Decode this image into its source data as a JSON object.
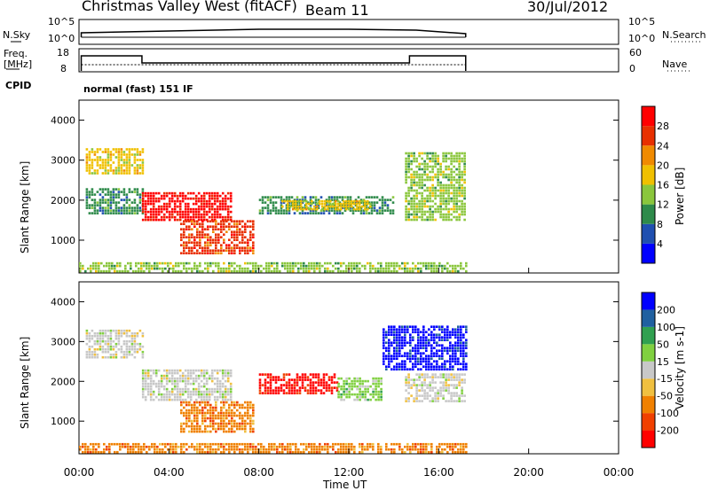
{
  "header": {
    "station": "Christmas Valley West (fitACF)",
    "beam": "Beam 11",
    "date": "30/Jul/2012"
  },
  "status_panels": {
    "nsky_label": "N.Sky",
    "nsearch_label": "N.Search",
    "noise_ticks": [
      "10^5",
      "10^0"
    ],
    "freq_label_line1": "Freq.",
    "freq_label_line2": "[MHz]",
    "freq_ticks": [
      "18",
      "8"
    ],
    "nave_label": "Nave",
    "nave_ticks": [
      "60",
      "0"
    ],
    "cpid_label": "CPID",
    "cpid_value": "normal (fast) 151 IF"
  },
  "chart_data": [
    {
      "type": "heatmap",
      "name": "power",
      "ylabel": "Slant Range [km]",
      "xlabel": "",
      "yticks": [
        "4000",
        "3000",
        "2000",
        "1000"
      ],
      "ylim": [
        180,
        4500
      ],
      "xlim": [
        0,
        24
      ],
      "colorbar_label": "Power [dB]",
      "colorbar_ticks": [
        "28",
        "24",
        "20",
        "16",
        "12",
        "8",
        "4"
      ],
      "colors": [
        "#0000ff",
        "#1f4fb0",
        "#2e8a4a",
        "#8ac63c",
        "#f0c000",
        "#f08a00",
        "#e83000",
        "#ff0000"
      ],
      "regions": [
        {
          "t0": 0.3,
          "t1": 2.8,
          "r0": 2700,
          "r1": 3300,
          "level": 4
        },
        {
          "t0": 0.3,
          "t1": 2.8,
          "r0": 1700,
          "r1": 2300,
          "level": 2
        },
        {
          "t0": 2.8,
          "t1": 6.8,
          "r0": 1500,
          "r1": 2200,
          "level": 7
        },
        {
          "t0": 4.5,
          "t1": 7.8,
          "r0": 700,
          "r1": 1500,
          "level": 6
        },
        {
          "t0": 8.0,
          "t1": 14.0,
          "r0": 1700,
          "r1": 2100,
          "level": 2
        },
        {
          "t0": 9.0,
          "t1": 13.0,
          "r0": 1800,
          "r1": 2000,
          "level": 4
        },
        {
          "t0": 14.5,
          "t1": 17.2,
          "r0": 1500,
          "r1": 3200,
          "level": 3
        },
        {
          "t0": 0.0,
          "t1": 17.2,
          "r0": 200,
          "r1": 450,
          "level": 3
        }
      ]
    },
    {
      "type": "heatmap",
      "name": "velocity",
      "ylabel": "Slant Range [km]",
      "xlabel": "Time UT",
      "yticks": [
        "4000",
        "3000",
        "2000",
        "1000"
      ],
      "ylim": [
        180,
        4500
      ],
      "xlim": [
        0,
        24
      ],
      "xticks": [
        "00:00",
        "04:00",
        "08:00",
        "12:00",
        "16:00",
        "20:00",
        "00:00"
      ],
      "colorbar_label": "Velocity [m s-1]",
      "colorbar_ticks": [
        "200",
        "100",
        "50",
        "15",
        "-15",
        "-50",
        "-100",
        "-200"
      ],
      "colors": [
        "#ff0000",
        "#f04000",
        "#f08000",
        "#f0c040",
        "#c8c8c8",
        "#80d040",
        "#30a050",
        "#2060a0",
        "#0000ff"
      ],
      "regions": [
        {
          "t0": 0.3,
          "t1": 2.8,
          "r0": 2600,
          "r1": 3300,
          "level": 4
        },
        {
          "t0": 2.8,
          "t1": 6.8,
          "r0": 1500,
          "r1": 2300,
          "level": 4
        },
        {
          "t0": 4.5,
          "t1": 7.8,
          "r0": 700,
          "r1": 1500,
          "level": 2
        },
        {
          "t0": 8.0,
          "t1": 11.5,
          "r0": 1700,
          "r1": 2200,
          "level": 0
        },
        {
          "t0": 11.5,
          "t1": 13.5,
          "r0": 1500,
          "r1": 2100,
          "level": 5
        },
        {
          "t0": 13.5,
          "t1": 17.2,
          "r0": 2300,
          "r1": 3400,
          "level": 8
        },
        {
          "t0": 14.5,
          "t1": 17.2,
          "r0": 1500,
          "r1": 2200,
          "level": 4
        },
        {
          "t0": 0.0,
          "t1": 17.2,
          "r0": 200,
          "r1": 450,
          "level": 2
        }
      ]
    }
  ]
}
